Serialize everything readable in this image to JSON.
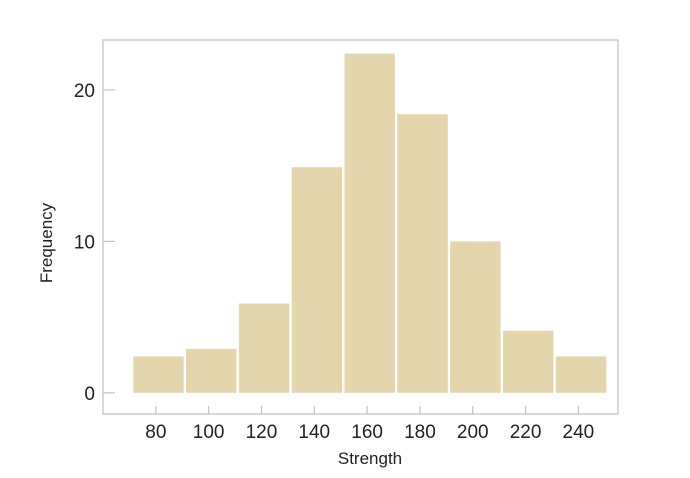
{
  "chart_data": {
    "type": "bar",
    "title": "",
    "xlabel": "Strength",
    "ylabel": "Frequency",
    "bins": [
      {
        "start": 71,
        "end": 91,
        "value": 2.4
      },
      {
        "start": 91,
        "end": 111,
        "value": 2.9
      },
      {
        "start": 111,
        "end": 131,
        "value": 5.9
      },
      {
        "start": 131,
        "end": 151,
        "value": 14.9
      },
      {
        "start": 151,
        "end": 171,
        "value": 22.4
      },
      {
        "start": 171,
        "end": 191,
        "value": 18.4
      },
      {
        "start": 191,
        "end": 211,
        "value": 10.0
      },
      {
        "start": 211,
        "end": 231,
        "value": 4.1
      },
      {
        "start": 231,
        "end": 251,
        "value": 2.4
      }
    ],
    "xticks": [
      "80",
      "100",
      "120",
      "140",
      "160",
      "180",
      "200",
      "220",
      "240"
    ],
    "yticks": [
      "0",
      "10",
      "20"
    ],
    "xlim": [
      60,
      255
    ],
    "ylim": [
      -1.4,
      23.3
    ],
    "grid": false,
    "bar_color": "#e5d5ad",
    "axis_color": "#c2c2c2"
  }
}
